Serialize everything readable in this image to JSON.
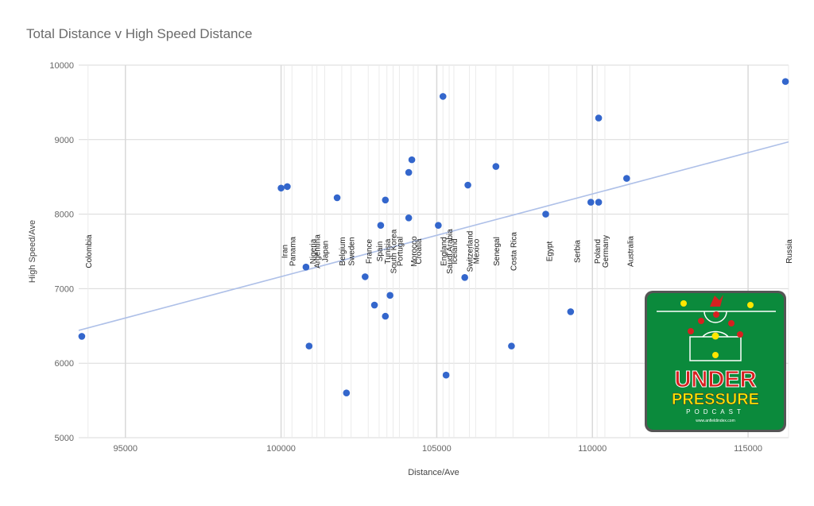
{
  "chart_data": {
    "type": "scatter",
    "title": "Total Distance v High Speed Distance",
    "xlabel": "Distance/Ave",
    "ylabel": "High Speed/Ave",
    "xlim": [
      93500,
      116300
    ],
    "ylim": [
      5000,
      10000
    ],
    "xticks": [
      95000,
      100000,
      105000,
      110000,
      115000
    ],
    "yticks": [
      5000,
      6000,
      7000,
      8000,
      9000,
      10000
    ],
    "grid": true,
    "colors": {
      "points": "#3366cc",
      "trendline": "#aec0e8",
      "grid": "#d9d9d9",
      "team_line": "#ebebeb"
    },
    "points": [
      {
        "x": 93600,
        "y": 6360
      },
      {
        "x": 100000,
        "y": 8350
      },
      {
        "x": 100200,
        "y": 8370
      },
      {
        "x": 100800,
        "y": 7290
      },
      {
        "x": 100900,
        "y": 6230
      },
      {
        "x": 101800,
        "y": 8220
      },
      {
        "x": 102100,
        "y": 5600
      },
      {
        "x": 102700,
        "y": 7160
      },
      {
        "x": 103000,
        "y": 6780
      },
      {
        "x": 103200,
        "y": 7850
      },
      {
        "x": 103350,
        "y": 8190
      },
      {
        "x": 103350,
        "y": 6630
      },
      {
        "x": 103500,
        "y": 6910
      },
      {
        "x": 104100,
        "y": 8560
      },
      {
        "x": 104100,
        "y": 7950
      },
      {
        "x": 104200,
        "y": 8730
      },
      {
        "x": 105050,
        "y": 7850
      },
      {
        "x": 105200,
        "y": 9580
      },
      {
        "x": 105300,
        "y": 5840
      },
      {
        "x": 105900,
        "y": 7150
      },
      {
        "x": 106000,
        "y": 8390
      },
      {
        "x": 106900,
        "y": 8640
      },
      {
        "x": 107400,
        "y": 6230
      },
      {
        "x": 108500,
        "y": 8000
      },
      {
        "x": 109300,
        "y": 6690
      },
      {
        "x": 109950,
        "y": 8160
      },
      {
        "x": 110200,
        "y": 8160
      },
      {
        "x": 110200,
        "y": 9290
      },
      {
        "x": 111100,
        "y": 8480
      },
      {
        "x": 116200,
        "y": 9780
      }
    ],
    "trendline": {
      "x": [
        93500,
        116300
      ],
      "y": [
        6440,
        8970
      ]
    },
    "team_labels": [
      {
        "team": "Colombia",
        "x": 93800
      },
      {
        "team": "Iran",
        "x": 100100
      },
      {
        "team": "Panama",
        "x": 100350
      },
      {
        "team": "Nigeria",
        "x": 101000
      },
      {
        "team": "Argentina",
        "x": 101150
      },
      {
        "team": "Japan",
        "x": 101400
      },
      {
        "team": "Belgium",
        "x": 101950
      },
      {
        "team": "Sweden",
        "x": 102250
      },
      {
        "team": "France",
        "x": 102800
      },
      {
        "team": "Spain",
        "x": 103150
      },
      {
        "team": "Tunisia",
        "x": 103400
      },
      {
        "team": "South Korea",
        "x": 103600
      },
      {
        "team": "Portugal",
        "x": 103800
      },
      {
        "team": "Morocco",
        "x": 104250
      },
      {
        "team": "Croatia",
        "x": 104400
      },
      {
        "team": "England",
        "x": 105200
      },
      {
        "team": "Saudi Arabia",
        "x": 105400
      },
      {
        "team": "Iceland",
        "x": 105550
      },
      {
        "team": "Switzerland",
        "x": 106050
      },
      {
        "team": "Mexico",
        "x": 106250
      },
      {
        "team": "Senegal",
        "x": 106900
      },
      {
        "team": "Costa Rica",
        "x": 107450
      },
      {
        "team": "Egypt",
        "x": 108600
      },
      {
        "team": "Serbia",
        "x": 109500
      },
      {
        "team": "Poland",
        "x": 110150
      },
      {
        "team": "Germany",
        "x": 110400
      },
      {
        "team": "Australia",
        "x": 111200
      },
      {
        "team": "Russia",
        "x": 116300
      }
    ],
    "team_label_y": 7500
  },
  "logo": {
    "line1": "UNDER",
    "line2": "PRESSURE",
    "line3": "PODCAST",
    "url": "www.anfieldindex.com",
    "colors": {
      "green": "#0b8a3c",
      "red": "#d62020",
      "yellow": "#ffe600",
      "white": "#ffffff"
    }
  }
}
